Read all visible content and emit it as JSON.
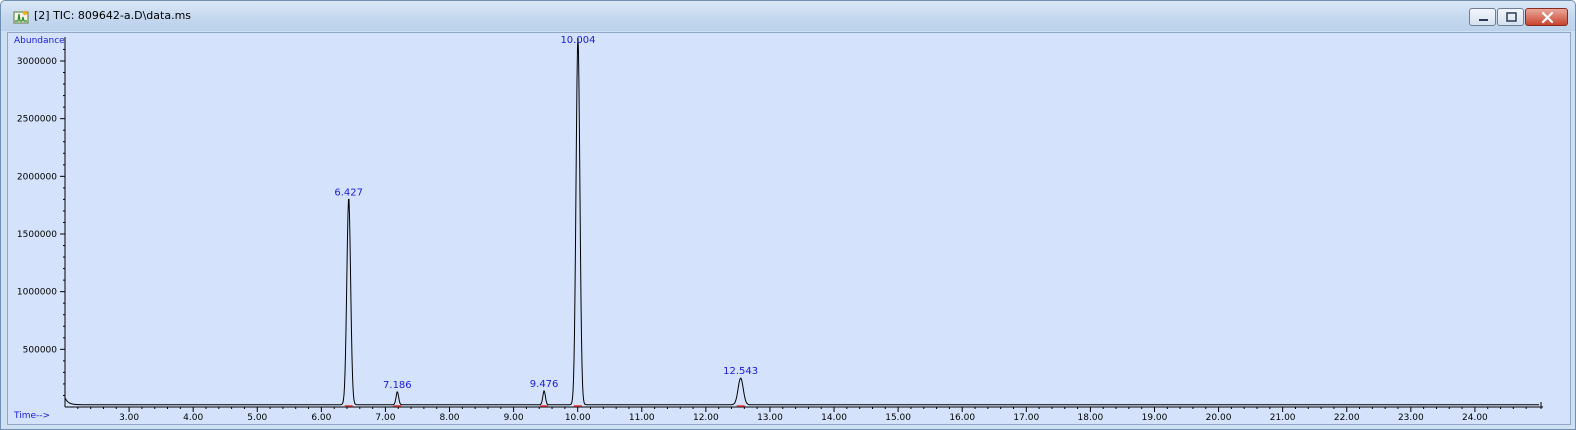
{
  "window": {
    "title": "[2] TIC: 809642-a.D\\data.ms",
    "icons": {
      "app": "chromatogram-icon",
      "minimize": "minimize-icon",
      "maximize": "maximize-icon",
      "close": "close-icon"
    },
    "colors": {
      "plot_background": "#d4e3fb",
      "trace": "#000000",
      "peak_label": "#1a1ad6",
      "baseline_marker": "#e03030"
    }
  },
  "chart_data": {
    "type": "line",
    "xlabel": "Time-->",
    "ylabel": "Abundance",
    "xlim": [
      2.0,
      25.0
    ],
    "ylim": [
      0,
      3200000
    ],
    "x_ticks": [
      3.0,
      4.0,
      5.0,
      6.0,
      7.0,
      8.0,
      9.0,
      10.0,
      11.0,
      12.0,
      13.0,
      14.0,
      15.0,
      16.0,
      17.0,
      18.0,
      19.0,
      20.0,
      21.0,
      22.0,
      23.0,
      24.0
    ],
    "x_tick_labels": [
      "3.00",
      "4.00",
      "5.00",
      "6.00",
      "7.00",
      "8.00",
      "9.00",
      "10.00",
      "11.00",
      "12.00",
      "13.00",
      "14.00",
      "15.00",
      "16.00",
      "17.00",
      "18.00",
      "19.00",
      "20.00",
      "21.00",
      "22.00",
      "23.00",
      "24.00"
    ],
    "y_ticks": [
      500000,
      1000000,
      1500000,
      2000000,
      2500000,
      3000000
    ],
    "y_tick_labels": [
      "500000",
      "1000000",
      "1500000",
      "2000000",
      "2500000",
      "3000000"
    ],
    "grid": false,
    "baseline": 20000,
    "peaks": [
      {
        "label": "6.427",
        "x": 6.427,
        "y": 1800000,
        "width": 0.03
      },
      {
        "label": "7.186",
        "x": 7.186,
        "y": 130000,
        "width": 0.02
      },
      {
        "label": "9.476",
        "x": 9.476,
        "y": 140000,
        "width": 0.02
      },
      {
        "label": "10.004",
        "x": 10.004,
        "y": 3200000,
        "width": 0.03
      },
      {
        "label": "12.543",
        "x": 12.543,
        "y": 250000,
        "width": 0.04
      }
    ]
  }
}
